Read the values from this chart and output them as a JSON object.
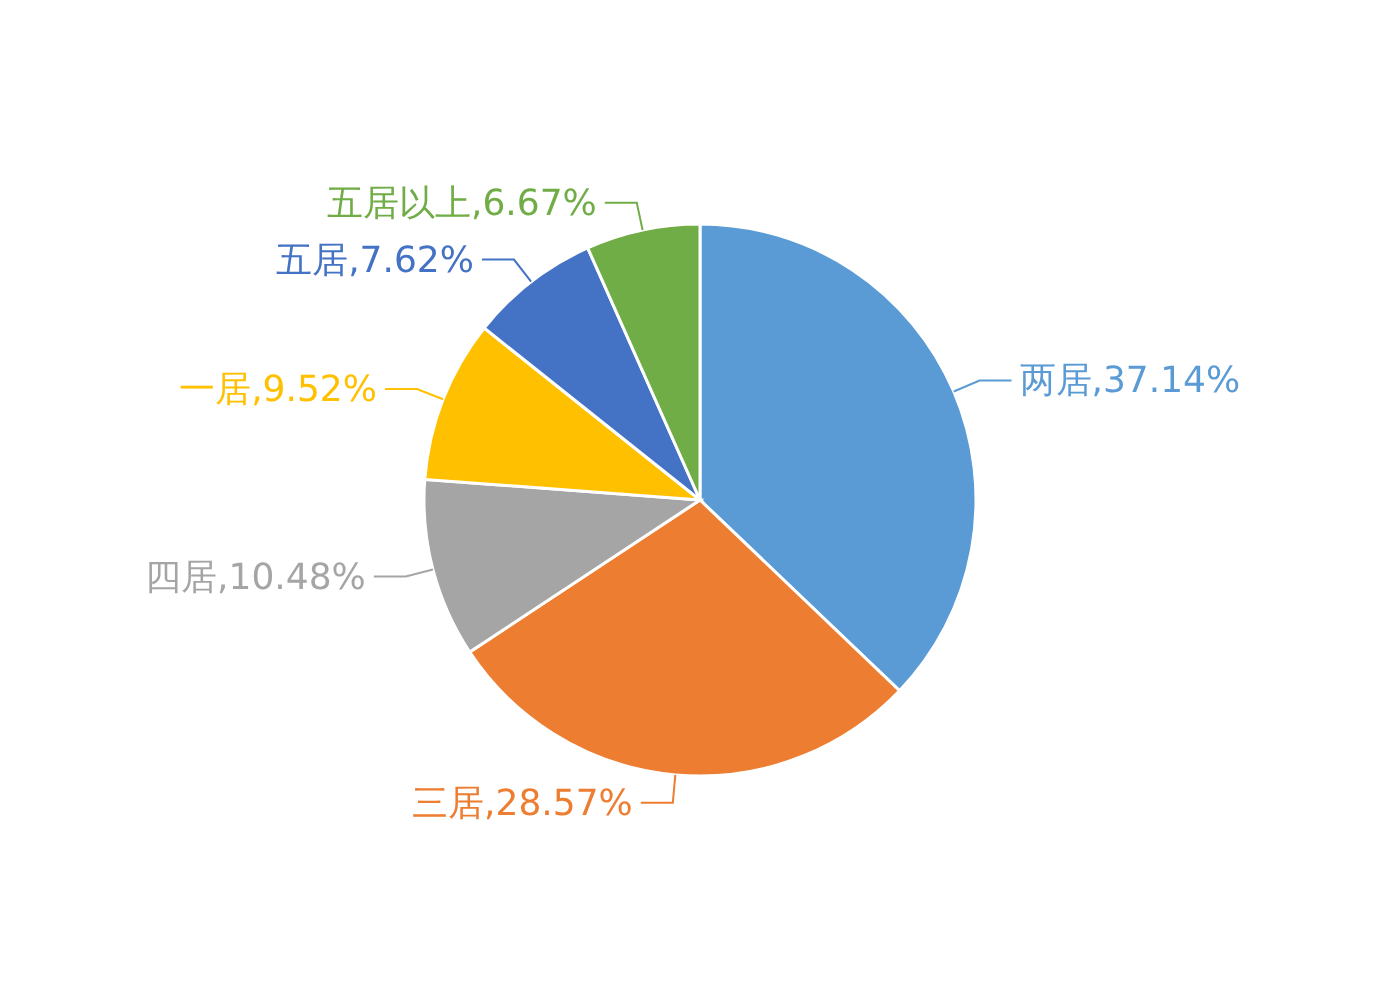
{
  "chart_data": {
    "type": "pie",
    "categories": [
      "两居",
      "三居",
      "四居",
      "一居",
      "五居",
      "五居以上"
    ],
    "values": [
      37.14,
      28.57,
      10.48,
      9.52,
      7.62,
      6.67
    ],
    "value_labels": [
      "37.14%",
      "28.57%",
      "10.48%",
      "9.52%",
      "7.62%",
      "6.67%"
    ],
    "colors": [
      "#5b9bd5",
      "#ed7d31",
      "#a5a5a5",
      "#ffc000",
      "#4472c4",
      "#70ad47"
    ]
  }
}
